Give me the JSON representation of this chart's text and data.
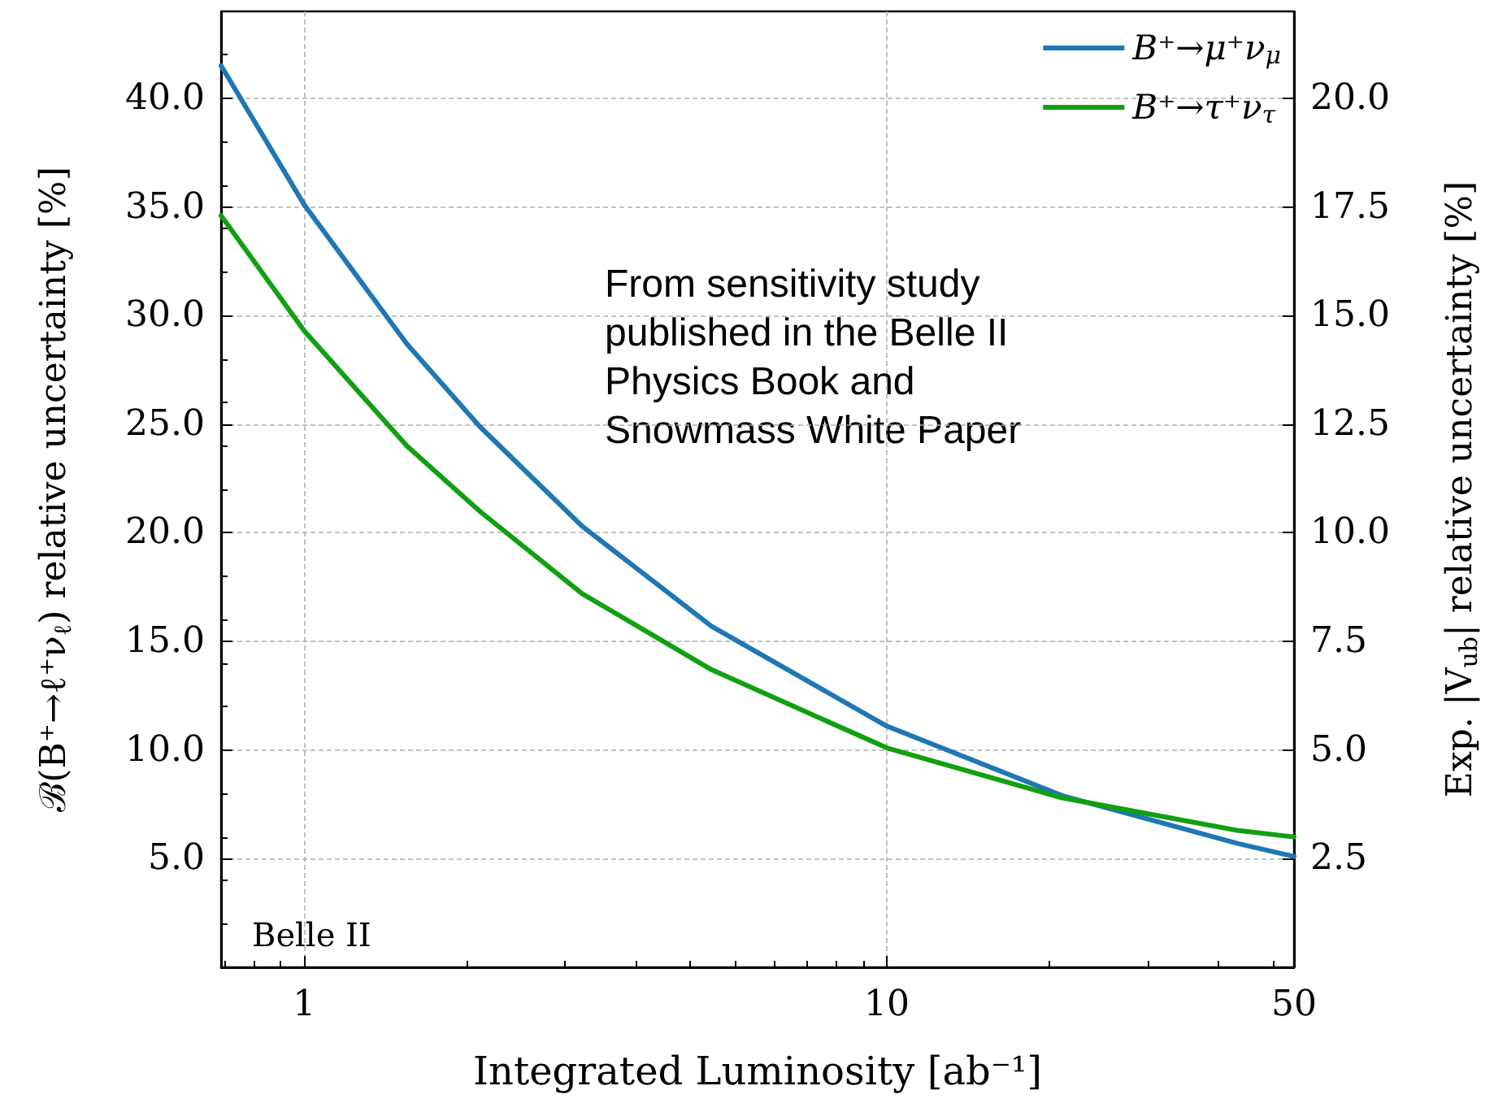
{
  "chart_data": {
    "type": "line",
    "xlabel": "Integrated Luminosity [ab⁻¹]",
    "ylabel": "ℬ(B⁺→ℓ⁺ν$_{ℓ}$) relative uncertainty [%]",
    "y2label": "Exp. |V$_{ub}$| relative uncertainty [%]",
    "x": [
      0.72,
      1,
      1.5,
      2,
      3,
      5,
      10,
      20,
      40,
      50
    ],
    "series": [
      {
        "name": "B⁺→μ⁺ν$_{μ}$",
        "color": "#1f77b4",
        "values": [
          41.5,
          35.1,
          28.7,
          24.9,
          20.3,
          15.7,
          11.1,
          7.9,
          5.7,
          5.1
        ]
      },
      {
        "name": "B⁺→τ⁺ν$_{τ}$",
        "color": "#11a011",
        "values": [
          34.6,
          29.3,
          24.0,
          21.0,
          17.2,
          13.7,
          10.1,
          7.8,
          6.3,
          6.0
        ]
      }
    ],
    "log": "x",
    "xlim": [
      0.72,
      50
    ],
    "xticks": [
      1,
      10,
      50
    ],
    "ylim": [
      0,
      44
    ],
    "yticks": [
      {
        "value": 5,
        "label": "5.0"
      },
      {
        "value": 10,
        "label": "10.0"
      },
      {
        "value": 15,
        "label": "15.0"
      },
      {
        "value": 20,
        "label": "20.0"
      },
      {
        "value": 25,
        "label": "25.0"
      },
      {
        "value": 30,
        "label": "30.0"
      },
      {
        "value": 35,
        "label": "35.0"
      },
      {
        "value": 40,
        "label": "40.0"
      }
    ],
    "y2lim": [
      0,
      22
    ],
    "y2ticks": [
      2.5,
      {
        "value": 5,
        "label": "5.0"
      },
      7.5,
      {
        "value": 10,
        "label": "10.0"
      },
      12.5,
      {
        "value": 15,
        "label": "15.0"
      },
      17.5,
      {
        "value": 20,
        "label": "20.0"
      }
    ],
    "grid": true,
    "legend": "top right",
    "marker": "none",
    "line_style": "solid",
    "annotations": [
      "From sensitivity study published in the Belle II Physics Book and Snowmass White Paper",
      "Belle II"
    ]
  }
}
